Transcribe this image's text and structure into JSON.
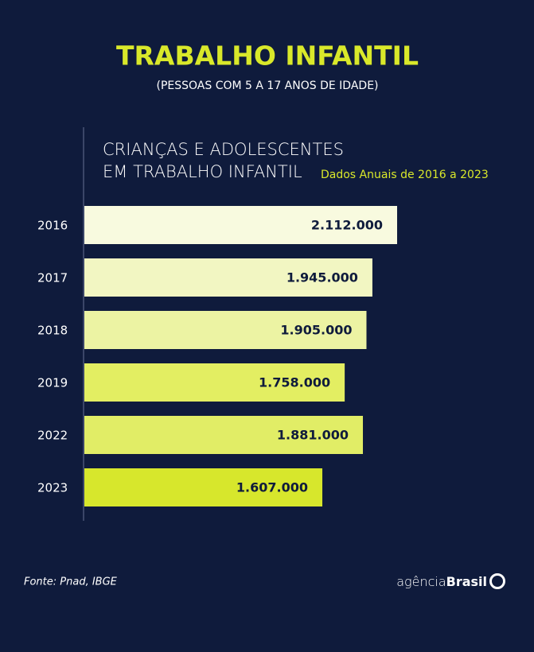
{
  "chart_data": {
    "type": "bar",
    "orientation": "horizontal",
    "title": "TRABALHO INFANTIL",
    "subtitle": "(PESSOAS COM 5 A 17 ANOS DE IDADE)",
    "chart_title": [
      "CRIANÇAS E ADOLESCENTES",
      "EM TRABALHO INFANTIL"
    ],
    "note": "Dados Anuais de 2016 a 2023",
    "categories": [
      "2016",
      "2017",
      "2018",
      "2019",
      "2022",
      "2023"
    ],
    "values": [
      2112000,
      1945000,
      1905000,
      1758000,
      1881000,
      1607000
    ],
    "value_labels": [
      "2.112.000",
      "1.945.000",
      "1.905.000",
      "1.758.000",
      "1.881.000",
      "1.607.000"
    ],
    "colors": [
      "#f8fadf",
      "#f2f6c2",
      "#ecf3a3",
      "#e3ee62",
      "#e1ed66",
      "#d7e72c"
    ]
  },
  "footer": {
    "source": "Fonte:  Pnad, IBGE",
    "logo": [
      "agência",
      "Brasil"
    ]
  }
}
